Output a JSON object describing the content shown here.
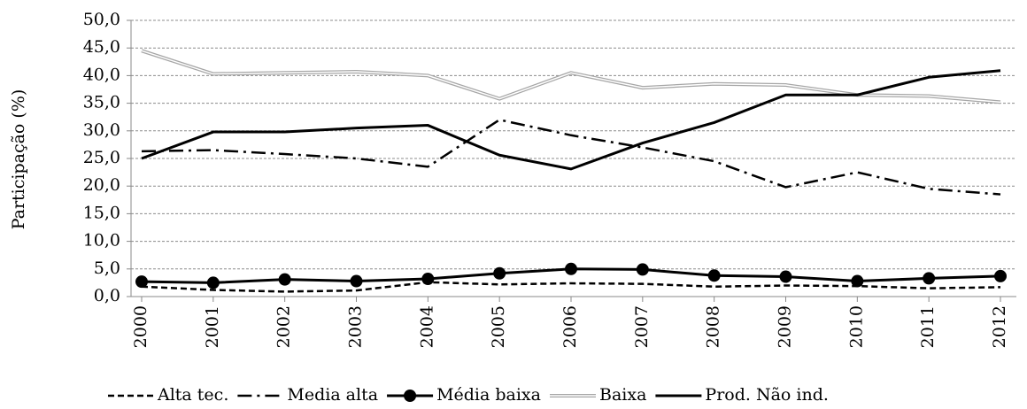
{
  "chart_data": {
    "type": "line",
    "ylabel": "Participação (%)",
    "categories": [
      "2000",
      "2001",
      "2002",
      "2003",
      "2004",
      "2005",
      "2006",
      "2007",
      "2008",
      "2009",
      "2010",
      "2011",
      "2012"
    ],
    "series": [
      {
        "name": "Alta tec.",
        "color": "#000000",
        "style": "dashed",
        "values": [
          1.8,
          1.2,
          0.9,
          1.1,
          2.6,
          2.2,
          2.4,
          2.3,
          1.8,
          2.0,
          1.9,
          1.5,
          1.7
        ]
      },
      {
        "name": "Media alta",
        "color": "#000000",
        "style": "dash-dot",
        "values": [
          26.3,
          26.5,
          25.8,
          25.0,
          23.5,
          32.0,
          29.2,
          27.0,
          24.5,
          19.8,
          22.5,
          19.5,
          18.5
        ]
      },
      {
        "name": "Média baixa",
        "color": "#000000",
        "style": "markers",
        "values": [
          2.7,
          2.5,
          3.1,
          2.8,
          3.2,
          4.2,
          5.0,
          4.9,
          3.8,
          3.6,
          2.8,
          3.3,
          3.7
        ]
      },
      {
        "name": "Baixa",
        "color": "#a6a6a6",
        "style": "double",
        "values": [
          44.5,
          40.3,
          40.5,
          40.7,
          40.0,
          35.8,
          40.5,
          37.8,
          38.5,
          38.3,
          36.5,
          36.3,
          35.2
        ]
      },
      {
        "name": "Prod. Não ind.",
        "color": "#000000",
        "style": "solid",
        "values": [
          25.0,
          29.8,
          29.8,
          30.5,
          31.0,
          25.6,
          23.1,
          27.8,
          31.5,
          36.5,
          36.5,
          39.7,
          40.9
        ]
      }
    ],
    "ylim": [
      0,
      50
    ],
    "yticks": [
      {
        "value": 0,
        "label": "0,0"
      },
      {
        "value": 5,
        "label": "5,0"
      },
      {
        "value": 10,
        "label": "10,0"
      },
      {
        "value": 15,
        "label": "15,0"
      },
      {
        "value": 20,
        "label": "20,0"
      },
      {
        "value": 25,
        "label": "25,0"
      },
      {
        "value": 30,
        "label": "30,0"
      },
      {
        "value": 35,
        "label": "35,0"
      },
      {
        "value": 40,
        "label": "40,0"
      },
      {
        "value": 45,
        "label": "45,0"
      },
      {
        "value": 50,
        "label": "50,0"
      }
    ],
    "grid": true
  }
}
